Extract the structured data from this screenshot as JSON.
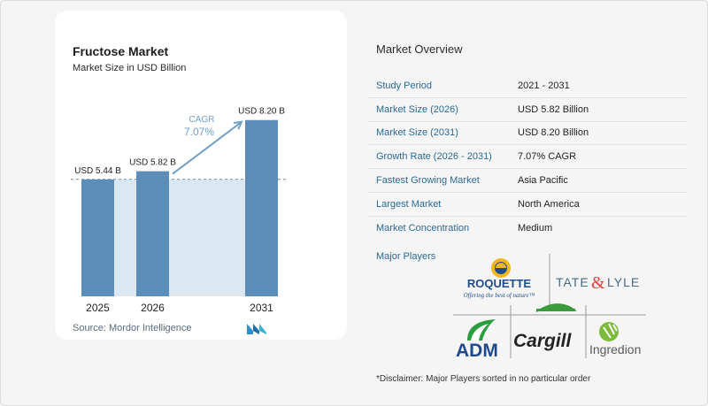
{
  "chart": {
    "title": "Fructose Market",
    "subtitle": "Market Size in USD Billion",
    "source": "Source: Mordor Intelligence",
    "cagr_label": "CAGR",
    "cagr_value": "7.07%"
  },
  "chart_data": {
    "type": "bar",
    "title": "Fructose Market",
    "subtitle": "Market Size in USD Billion",
    "categories": [
      "2025",
      "2026",
      "2031"
    ],
    "values": [
      5.44,
      5.82,
      8.2
    ],
    "data_labels": [
      "USD 5.44 B",
      "USD 5.82 B",
      "USD 8.20 B"
    ],
    "ylim": [
      0,
      10
    ],
    "grid": false,
    "annotations": [
      "CAGR",
      "7.07%"
    ]
  },
  "overview": {
    "title": "Market Overview",
    "rows": [
      {
        "label": "Study Period",
        "value": "2021 - 2031"
      },
      {
        "label": "Market Size (2026)",
        "value": "USD 5.82 Billion"
      },
      {
        "label": "Market Size (2031)",
        "value": "USD 8.20 Billion"
      },
      {
        "label": "Growth Rate (2026 - 2031)",
        "value": "7.07% CAGR"
      },
      {
        "label": "Fastest Growing Market",
        "value": "Asia Pacific"
      },
      {
        "label": "Largest Market",
        "value": "North America"
      },
      {
        "label": "Market Concentration",
        "value": "Medium"
      }
    ],
    "players_label": "Major Players",
    "players": {
      "roquette": "ROQUETTE",
      "roquette_tagline": "Offering the best of nature™",
      "tate_a": "TATE",
      "tate_amp": "&",
      "tate_b": "LYLE",
      "adm": "ADM",
      "cargill": "Cargill",
      "ingredion": "Ingredion"
    },
    "disclaimer": "*Disclaimer: Major Players sorted in no particular order"
  },
  "colors": {
    "bar": "#5b8db8",
    "bar_last": "#5b8db8",
    "area": "#dbe7f1",
    "label_blue": "#2a6a94",
    "arrow": "#6f9fc6"
  }
}
